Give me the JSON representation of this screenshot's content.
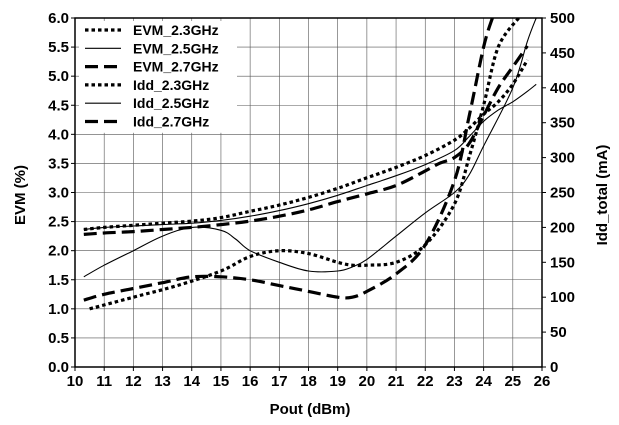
{
  "chart_data": {
    "type": "line",
    "xlabel": "Pout (dBm)",
    "ylabel_left": "EVM (%)",
    "ylabel_right": "Idd_total (mA)",
    "xlim": [
      10,
      26
    ],
    "ylim_left": [
      0,
      6
    ],
    "ylim_right": [
      0,
      500
    ],
    "x_ticks": [
      "10",
      "11",
      "12",
      "13",
      "14",
      "15",
      "16",
      "17",
      "18",
      "19",
      "20",
      "21",
      "22",
      "23",
      "24",
      "25",
      "26"
    ],
    "y_left_ticks": [
      "0.0",
      "0.5",
      "1.0",
      "1.5",
      "2.0",
      "2.5",
      "3.0",
      "3.5",
      "4.0",
      "4.5",
      "5.0",
      "5.5",
      "6.0"
    ],
    "y_right_ticks": [
      "0",
      "50",
      "100",
      "150",
      "200",
      "250",
      "300",
      "350",
      "400",
      "450",
      "500"
    ],
    "grid": true,
    "legend_position": "top-left",
    "series": [
      {
        "name": "EVM_2.3GHz",
        "axis": "left",
        "style": "dotted",
        "x": [
          10.5,
          12,
          13.5,
          15,
          16,
          17,
          18,
          19,
          19.5,
          20,
          21,
          22,
          23,
          23.5,
          24,
          24.5,
          25.2
        ],
        "y": [
          1.0,
          1.2,
          1.4,
          1.65,
          1.9,
          2.0,
          1.95,
          1.8,
          1.75,
          1.75,
          1.8,
          2.1,
          2.8,
          3.6,
          4.5,
          5.5,
          6.0
        ]
      },
      {
        "name": "EVM_2.5GHz",
        "axis": "left",
        "style": "solid-thin",
        "x": [
          10.3,
          11,
          12,
          13,
          14,
          15,
          15.5,
          16,
          17,
          18,
          19,
          19.5,
          20,
          21,
          22,
          23,
          23.5,
          24,
          25,
          25.5,
          25.8
        ],
        "y": [
          1.55,
          1.75,
          2.0,
          2.25,
          2.4,
          2.35,
          2.2,
          2.0,
          1.8,
          1.65,
          1.65,
          1.72,
          1.85,
          2.25,
          2.65,
          3.0,
          3.3,
          3.8,
          4.8,
          5.6,
          6.0
        ]
      },
      {
        "name": "EVM_2.7GHz",
        "axis": "left",
        "style": "dashed",
        "x": [
          10.3,
          11,
          12,
          13,
          14,
          15,
          16,
          17,
          18,
          19,
          19.5,
          20,
          21,
          22,
          23,
          23.5,
          24,
          24.3
        ],
        "y": [
          1.15,
          1.25,
          1.35,
          1.45,
          1.55,
          1.55,
          1.5,
          1.4,
          1.3,
          1.2,
          1.2,
          1.3,
          1.6,
          2.1,
          3.2,
          4.3,
          5.5,
          6.0
        ]
      },
      {
        "name": "Idd_2.3GHz",
        "axis": "right",
        "style": "dotted",
        "x": [
          10.3,
          11,
          12,
          13,
          14,
          15,
          16,
          17,
          18,
          19,
          20,
          21,
          22,
          23,
          23.5,
          24,
          24.5,
          25,
          25.5
        ],
        "y": [
          197,
          200,
          203,
          206,
          209,
          214,
          223,
          232,
          243,
          256,
          271,
          286,
          303,
          325,
          342,
          362,
          380,
          405,
          440
        ]
      },
      {
        "name": "Idd_2.5GHz",
        "axis": "right",
        "style": "solid-thin",
        "x": [
          10.3,
          11,
          12,
          13,
          14,
          15,
          16,
          17,
          18,
          19,
          20,
          21,
          22,
          23,
          23.5,
          24,
          24.5,
          25,
          25.5,
          25.8
        ],
        "y": [
          197,
          200,
          202,
          204,
          206,
          210,
          216,
          224,
          234,
          246,
          260,
          274,
          290,
          310,
          330,
          352,
          368,
          380,
          395,
          405
        ]
      },
      {
        "name": "Idd_2.7GHz",
        "axis": "right",
        "style": "dashed",
        "x": [
          10.3,
          11,
          12,
          13,
          14,
          15,
          16,
          17,
          18,
          19,
          20,
          21,
          22,
          22.5,
          23,
          23.5,
          24,
          24.5,
          25,
          25.5
        ],
        "y": [
          190,
          192,
          194,
          197,
          200,
          204,
          209,
          216,
          225,
          237,
          248,
          260,
          281,
          292,
          300,
          320,
          360,
          400,
          430,
          460
        ]
      }
    ]
  }
}
